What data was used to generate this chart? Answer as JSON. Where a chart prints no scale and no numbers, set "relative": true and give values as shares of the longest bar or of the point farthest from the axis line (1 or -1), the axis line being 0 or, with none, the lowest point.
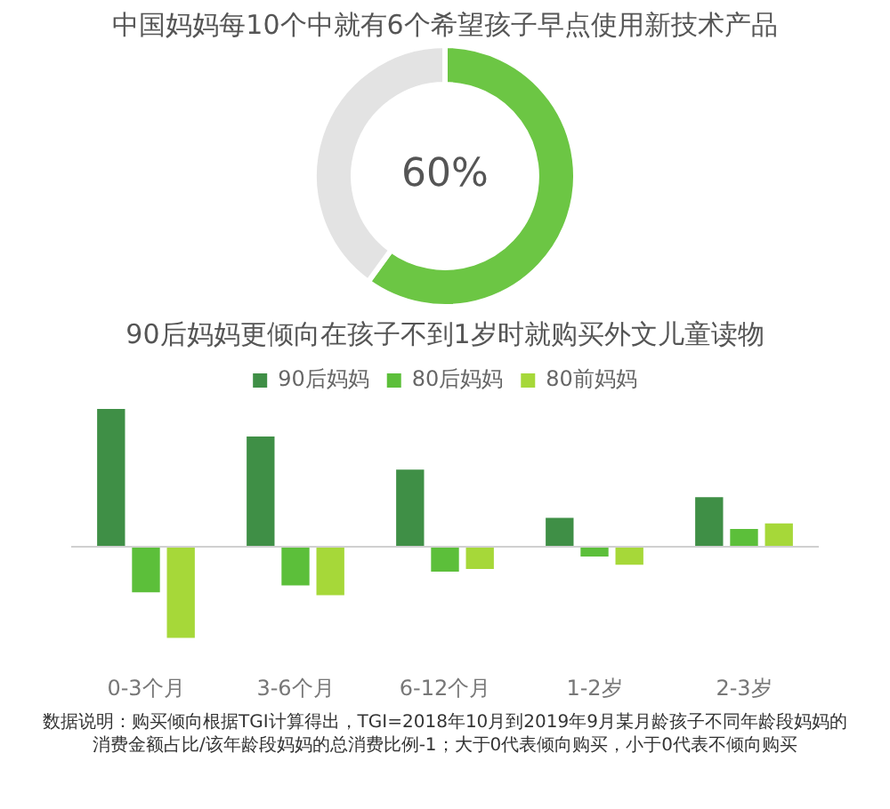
{
  "chart_data": [
    {
      "type": "donut",
      "title": "中国妈妈每10个中就有6个希望孩子早点使用新技术产品",
      "categories": [
        null,
        null
      ],
      "values": [
        60,
        40
      ],
      "colors": [
        "#6cc644",
        "#e3e3e3"
      ],
      "value_labels": [
        "60%",
        null
      ],
      "legend": false
    },
    {
      "type": "bar",
      "title": "90后妈妈更倾向在孩子不到1岁时就购买外文儿童读物",
      "categories": [
        "0-3个月",
        "3-6个月",
        "6-12个月",
        "1-2岁",
        "2-3岁"
      ],
      "relative": true,
      "legend": "top",
      "grid": false,
      "series": [
        {
          "name": "90后妈妈",
          "color": "#3f8f46",
          "values": [
            1,
            0.8,
            0.56,
            0.21,
            0.36
          ]
        },
        {
          "name": "80后妈妈",
          "color": "#5cbf3a",
          "values": [
            -0.33,
            -0.28,
            -0.18,
            -0.07,
            0.13
          ]
        },
        {
          "name": "80前妈妈",
          "color": "#a6d839",
          "values": [
            -0.66,
            -0.35,
            -0.16,
            -0.13,
            0.17
          ]
        }
      ],
      "annotations": [
        "数据说明：购买倾向根据TGI计算得出，TGI=2018年10月到2019年9月某月龄孩子不同年龄段妈妈的消费金额占比/该年龄段妈妈的总消费比例-1；大于0代表倾向购买，小于0代表不倾向购买"
      ]
    }
  ]
}
